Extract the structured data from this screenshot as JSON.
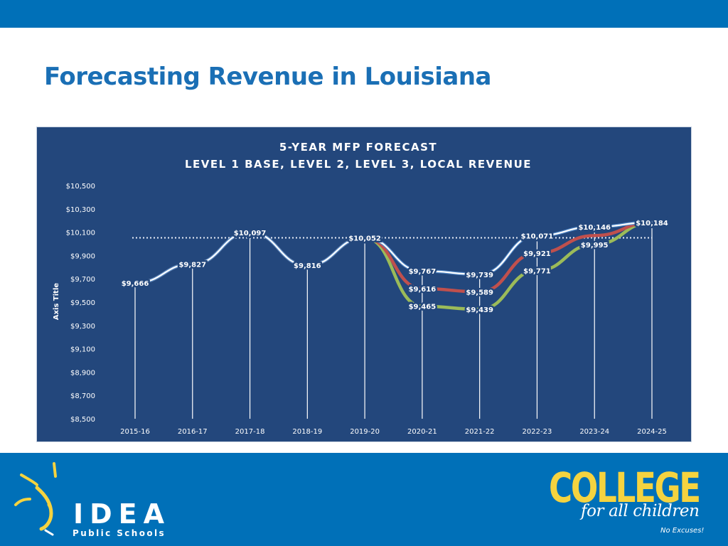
{
  "page": {
    "title": "Forecasting Revenue in Louisiana"
  },
  "branding": {
    "org_name": "IDEA",
    "org_subtitle": "Public Schools",
    "campaign_word": "COLLEGE",
    "campaign_tagline": "for all children",
    "campaign_motto": "No Excuses!"
  },
  "colors": {
    "header_bar": "#0070b8",
    "title": "#1a6fb5",
    "chart_background": "#23477c",
    "brand_yellow": "#f5d33f",
    "series_local_revenue": "#ffffff",
    "series_level_3": "#4f86c6",
    "series_level_2": "#c0504d",
    "series_level_1_base": "#9bbb59"
  },
  "chart_data": {
    "type": "line",
    "title": "5-YEAR MFP FORECAST",
    "subtitle": "LEVEL 1 BASE, LEVEL 2, LEVEL 3, LOCAL REVENUE",
    "xlabel": "",
    "ylabel": "Axis Title",
    "ylim": [
      8500,
      10500
    ],
    "y_ticks": [
      10500,
      10300,
      10100,
      9900,
      9700,
      9500,
      9300,
      9100,
      8900,
      8700,
      8500
    ],
    "y_tick_labels": [
      "$10,500",
      "$10,300",
      "$10,100",
      "$9,900",
      "$9,700",
      "$9,500",
      "$9,300",
      "$9,100",
      "$8,900",
      "$8,700",
      "$8,500"
    ],
    "categories": [
      "2015-16",
      "2016-17",
      "2017-18",
      "2018-19",
      "2019-20",
      "2020-21",
      "2021-22",
      "2022-23",
      "2023-24",
      "2024-25"
    ],
    "reference_line": 10052,
    "grid": false,
    "legend": "none",
    "series": [
      {
        "color": "#9bbb59",
        "values": [
          9666,
          9827,
          10097,
          9816,
          10052,
          9465,
          9439,
          9771,
          9995,
          10184
        ]
      },
      {
        "color": "#c0504d",
        "values": [
          9666,
          9827,
          10097,
          9816,
          10052,
          9616,
          9589,
          9921,
          10071,
          10184
        ]
      },
      {
        "color": "#4f86c6",
        "values": [
          9666,
          9827,
          10097,
          9816,
          10052,
          9767,
          9739,
          10071,
          10146,
          10184
        ]
      },
      {
        "color": "#ffffff",
        "values": [
          9666,
          9827,
          10097,
          9816,
          10052,
          9767,
          9739,
          10071,
          10146,
          10184
        ]
      }
    ],
    "data_labels": [
      {
        "category": "2015-16",
        "value": 9666,
        "text": "$9,666"
      },
      {
        "category": "2016-17",
        "value": 9827,
        "text": "$9,827"
      },
      {
        "category": "2017-18",
        "value": 10097,
        "text": "$10,097"
      },
      {
        "category": "2018-19",
        "value": 9816,
        "text": "$9,816"
      },
      {
        "category": "2019-20",
        "value": 10052,
        "text": "$10,052"
      },
      {
        "category": "2020-21",
        "value": 9767,
        "text": "$9,767"
      },
      {
        "category": "2020-21",
        "value": 9616,
        "text": "$9,616"
      },
      {
        "category": "2020-21",
        "value": 9465,
        "text": "$9,465"
      },
      {
        "category": "2021-22",
        "value": 9739,
        "text": "$9,739"
      },
      {
        "category": "2021-22",
        "value": 9589,
        "text": "$9,589"
      },
      {
        "category": "2021-22",
        "value": 9439,
        "text": "$9,439"
      },
      {
        "category": "2022-23",
        "value": 10071,
        "text": "$10,071"
      },
      {
        "category": "2022-23",
        "value": 9921,
        "text": "$9,921"
      },
      {
        "category": "2022-23",
        "value": 9771,
        "text": "$9,771"
      },
      {
        "category": "2023-24",
        "value": 10146,
        "text": "$10,146"
      },
      {
        "category": "2023-24",
        "value": 9995,
        "text": "$9,995"
      },
      {
        "category": "2024-25",
        "value": 10184,
        "text": "$10,184"
      }
    ]
  }
}
